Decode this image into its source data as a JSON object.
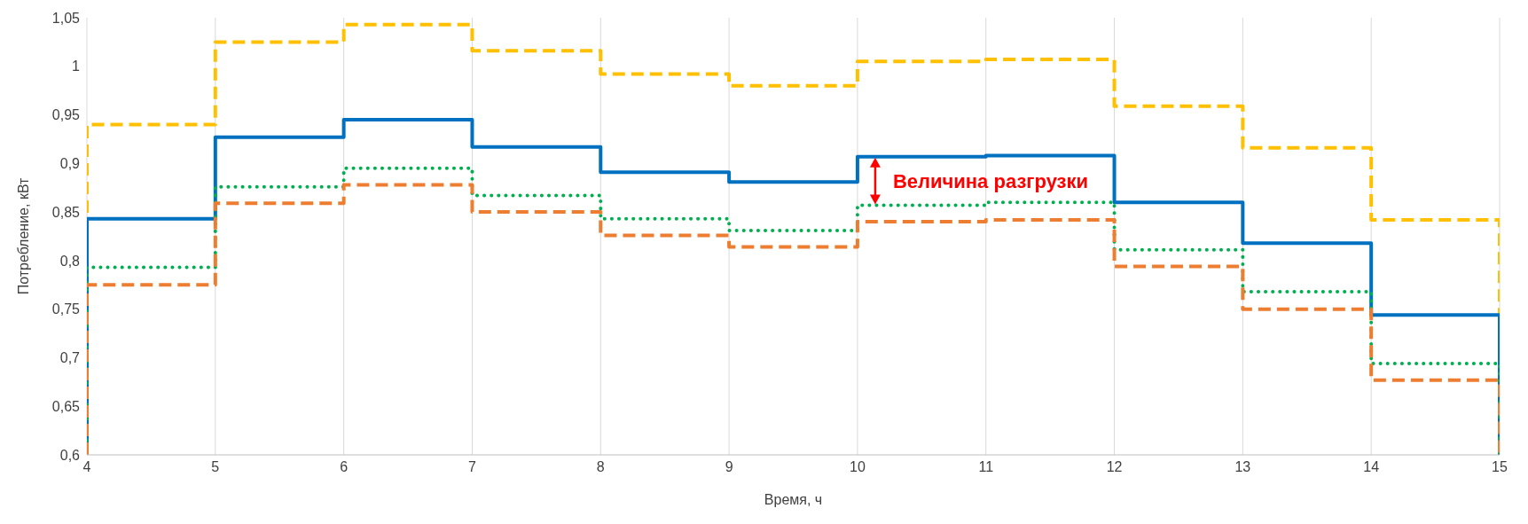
{
  "chart_data": {
    "type": "step",
    "xlabel": "Время, ч",
    "ylabel": "Потребление, кВт",
    "x": [
      4,
      4,
      5,
      6,
      7,
      8,
      9,
      10,
      11,
      12,
      13,
      14,
      15,
      15
    ],
    "series": [
      {
        "color": "#ffc000",
        "line_style": "dashed",
        "values": [
          0.6,
          0.94,
          1.025,
          1.043,
          1.016,
          0.992,
          0.98,
          1.005,
          1.007,
          0.959,
          0.916,
          0.842,
          0.842,
          0.6
        ]
      },
      {
        "color": "#0070c0",
        "line_style": "solid",
        "values": [
          0.6,
          0.843,
          0.927,
          0.945,
          0.917,
          0.891,
          0.881,
          0.907,
          0.908,
          0.86,
          0.818,
          0.744,
          0.744,
          0.6
        ]
      },
      {
        "color": "#00b050",
        "line_style": "dotted",
        "values": [
          0.6,
          0.793,
          0.876,
          0.895,
          0.867,
          0.843,
          0.831,
          0.857,
          0.86,
          0.811,
          0.768,
          0.694,
          0.694,
          0.6
        ]
      },
      {
        "color": "#ed7d31",
        "line_style": "dashed",
        "values": [
          0.6,
          0.775,
          0.859,
          0.878,
          0.85,
          0.826,
          0.814,
          0.84,
          0.842,
          0.794,
          0.75,
          0.677,
          0.677,
          0.6
        ]
      }
    ],
    "xlim": [
      4,
      15
    ],
    "xticks": [
      4,
      5,
      6,
      7,
      8,
      9,
      10,
      11,
      12,
      13,
      14,
      15
    ],
    "ylim": [
      0.6,
      1.05
    ],
    "yticks": [
      {
        "value": 0.6,
        "label": "0,6"
      },
      {
        "value": 0.65,
        "label": "0,65"
      },
      {
        "value": 0.7,
        "label": "0,7"
      },
      {
        "value": 0.75,
        "label": "0,75"
      },
      {
        "value": 0.8,
        "label": "0,8"
      },
      {
        "value": 0.85,
        "label": "0,85"
      },
      {
        "value": 0.9,
        "label": "0,9"
      },
      {
        "value": 0.95,
        "label": "0,95"
      },
      {
        "value": 1,
        "label": "1"
      },
      {
        "value": 1.05,
        "label": "1,05"
      }
    ],
    "grid": "x",
    "legend": false,
    "marker": "none",
    "annotations": [
      "Величина разгрузки"
    ]
  }
}
